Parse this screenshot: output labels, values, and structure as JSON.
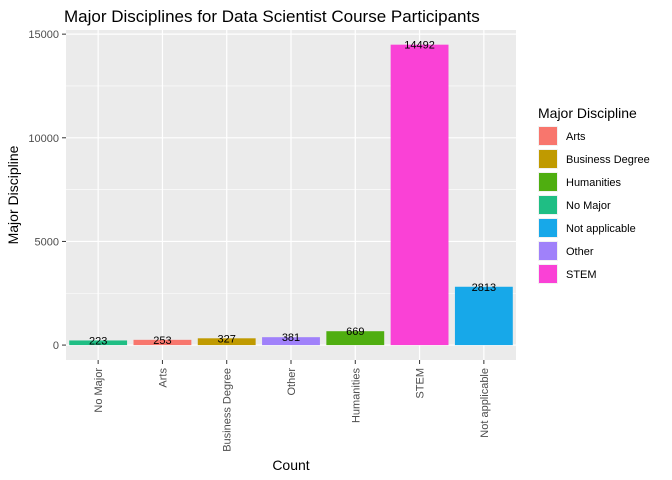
{
  "chart_data": {
    "type": "bar",
    "title": "Major Disciplines for Data Scientist Course Participants",
    "xlabel": "Count",
    "ylabel": "Major Discipline",
    "categories": [
      "No Major",
      "Arts",
      "Business Degree",
      "Other",
      "Humanities",
      "STEM",
      "Not applicable"
    ],
    "values": [
      223,
      253,
      327,
      381,
      669,
      14492,
      2813
    ],
    "data_labels": [
      "223",
      "253",
      "327",
      "381",
      "669",
      "14492",
      "2813"
    ],
    "bar_colors": [
      "#1FBE84",
      "#F8766D",
      "#C09A00",
      "#A081FA",
      "#4FAE10",
      "#FA41D6",
      "#17A8E9"
    ],
    "ylim": [
      -720,
      15200
    ],
    "yticks": [
      0,
      5000,
      10000,
      15000
    ],
    "ytick_labels": [
      "0",
      "5000",
      "10000",
      "15000"
    ],
    "grid": true,
    "panel_background": "#EBEBEB",
    "grid_color": "#FFFFFF",
    "legend": {
      "title": "Major Discipline",
      "placement": "right",
      "items": [
        {
          "label": "Arts",
          "color": "#F8766D"
        },
        {
          "label": "Business Degree",
          "color": "#C09A00"
        },
        {
          "label": "Humanities",
          "color": "#4FAE10"
        },
        {
          "label": "No Major",
          "color": "#1FBE84"
        },
        {
          "label": "Not applicable",
          "color": "#17A8E9"
        },
        {
          "label": "Other",
          "color": "#A081FA"
        },
        {
          "label": "STEM",
          "color": "#FA41D6"
        }
      ]
    }
  }
}
